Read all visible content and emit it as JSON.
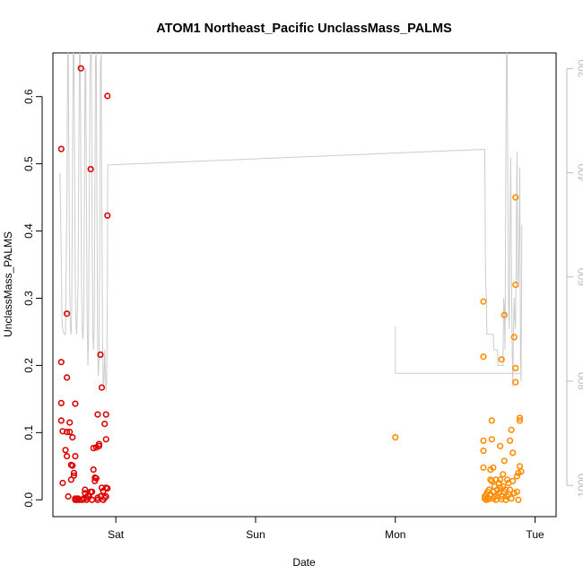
{
  "chart_data": {
    "type": "scatter",
    "title": "ATOM1 Northeast_Pacific UnclassMass_PALMS",
    "xlabel": "Date",
    "ylabel": "UnclassMass_PALMS",
    "x_ticks": [
      "Sat",
      "Sun",
      "Mon",
      "Tue"
    ],
    "x_tick_positions": [
      0,
      1,
      2,
      3
    ],
    "xlim": [
      -0.45,
      3.15
    ],
    "ylim": [
      -0.025,
      0.665
    ],
    "y_ticks": [
      0.0,
      0.1,
      0.2,
      0.3,
      0.4,
      0.5,
      0.6
    ],
    "y_tick_labels": [
      "0.0",
      "0.1",
      "0.2",
      "0.3",
      "0.4",
      "0.5",
      "0.6"
    ],
    "secondary_axis": {
      "label": "",
      "inverted": true,
      "ylim": [
        1060,
        170
      ],
      "ticks": [
        200,
        400,
        600,
        800,
        1000
      ],
      "tick_labels": [
        "200",
        "400",
        "600",
        "800",
        "1000"
      ],
      "color": "#bbbbbb"
    },
    "grid": false,
    "series": [
      {
        "color": "#dd0000",
        "marker": "open-circle",
        "points": [
          [
            -0.39,
            0.522
          ],
          [
            -0.39,
            0.205
          ],
          [
            -0.39,
            0.144
          ],
          [
            -0.39,
            0.118
          ],
          [
            -0.38,
            0.025
          ],
          [
            -0.38,
            0.102
          ],
          [
            -0.36,
            0.074
          ],
          [
            -0.35,
            0.277
          ],
          [
            -0.35,
            0.182
          ],
          [
            -0.35,
            0.065
          ],
          [
            -0.35,
            0.101
          ],
          [
            -0.34,
            0.005
          ],
          [
            -0.33,
            0.115
          ],
          [
            -0.33,
            0.101
          ],
          [
            -0.32,
            0.052
          ],
          [
            -0.32,
            0.03
          ],
          [
            -0.31,
            0.093
          ],
          [
            -0.31,
            0.051
          ],
          [
            -0.3,
            0.04
          ],
          [
            -0.3,
            0.036
          ],
          [
            -0.29,
            0.065
          ],
          [
            -0.29,
            0.143
          ],
          [
            -0.29,
            0.002
          ],
          [
            -0.29,
            0.0
          ],
          [
            -0.28,
            0.0
          ],
          [
            -0.27,
            0.002
          ],
          [
            -0.26,
            0.0
          ],
          [
            -0.25,
            0.642
          ],
          [
            -0.24,
            0.0
          ],
          [
            -0.23,
            0.002
          ],
          [
            -0.22,
            0.015
          ],
          [
            -0.22,
            0.01
          ],
          [
            -0.21,
            0.003
          ],
          [
            -0.21,
            0.0
          ],
          [
            -0.2,
            0.006
          ],
          [
            -0.19,
            0.005
          ],
          [
            -0.18,
            0.492
          ],
          [
            -0.18,
            0.012
          ],
          [
            -0.17,
            0.0
          ],
          [
            -0.17,
            0.012
          ],
          [
            -0.16,
            0.077
          ],
          [
            -0.16,
            0.045
          ],
          [
            -0.15,
            0.028
          ],
          [
            -0.15,
            0.033
          ],
          [
            -0.14,
            0.078
          ],
          [
            -0.14,
            0.032
          ],
          [
            -0.13,
            0.0
          ],
          [
            -0.13,
            0.003
          ],
          [
            -0.13,
            0.127
          ],
          [
            -0.12,
            0.08
          ],
          [
            -0.12,
            0.083
          ],
          [
            -0.11,
            0.216
          ],
          [
            -0.11,
            0.005
          ],
          [
            -0.1,
            0.167
          ],
          [
            -0.1,
            0.018
          ],
          [
            -0.09,
            0.0
          ],
          [
            -0.09,
            0.013
          ],
          [
            -0.08,
            0.003
          ],
          [
            -0.08,
            0.113
          ],
          [
            -0.07,
            0.005
          ],
          [
            -0.07,
            0.018
          ],
          [
            -0.07,
            0.127
          ],
          [
            -0.07,
            0.09
          ],
          [
            -0.06,
            0.017
          ],
          [
            -0.06,
            0.423
          ],
          [
            -0.06,
            0.601
          ]
        ]
      },
      {
        "color": "#ff8c00",
        "marker": "open-circle",
        "points": [
          [
            2.0,
            0.093
          ],
          [
            2.63,
            0.295
          ],
          [
            2.63,
            0.213
          ],
          [
            2.63,
            0.088
          ],
          [
            2.63,
            0.073
          ],
          [
            2.63,
            0.048
          ],
          [
            2.64,
            0.005
          ],
          [
            2.64,
            0.002
          ],
          [
            2.65,
            0.0
          ],
          [
            2.65,
            0.008
          ],
          [
            2.66,
            0.012
          ],
          [
            2.66,
            0.003
          ],
          [
            2.67,
            0.015
          ],
          [
            2.67,
            0.001
          ],
          [
            2.68,
            0.03
          ],
          [
            2.68,
            0.045
          ],
          [
            2.68,
            0.008
          ],
          [
            2.69,
            0.118
          ],
          [
            2.69,
            0.09
          ],
          [
            2.69,
            0.028
          ],
          [
            2.7,
            0.002
          ],
          [
            2.7,
            0.048
          ],
          [
            2.7,
            0.012
          ],
          [
            2.71,
            0.005
          ],
          [
            2.71,
            0.02
          ],
          [
            2.72,
            0.03
          ],
          [
            2.72,
            0.0
          ],
          [
            2.73,
            0.015
          ],
          [
            2.73,
            0.006
          ],
          [
            2.74,
            0.025
          ],
          [
            2.74,
            0.01
          ],
          [
            2.75,
            0.08
          ],
          [
            2.75,
            0.03
          ],
          [
            2.75,
            0.018
          ],
          [
            2.76,
            0.209
          ],
          [
            2.76,
            0.005
          ],
          [
            2.76,
            0.001
          ],
          [
            2.77,
            0.02
          ],
          [
            2.77,
            0.038
          ],
          [
            2.78,
            0.275
          ],
          [
            2.78,
            0.058
          ],
          [
            2.78,
            0.012
          ],
          [
            2.79,
            0.0
          ],
          [
            2.79,
            0.015
          ],
          [
            2.8,
            0.005
          ],
          [
            2.8,
            0.03
          ],
          [
            2.81,
            0.025
          ],
          [
            2.81,
            0.008
          ],
          [
            2.82,
            0.088
          ],
          [
            2.82,
            0.015
          ],
          [
            2.83,
            0.104
          ],
          [
            2.83,
            0.002
          ],
          [
            2.84,
            0.028
          ],
          [
            2.84,
            0.07
          ],
          [
            2.85,
            0.242
          ],
          [
            2.85,
            0.01
          ],
          [
            2.86,
            0.196
          ],
          [
            2.86,
            0.175
          ],
          [
            2.86,
            0.45
          ],
          [
            2.86,
            0.32
          ],
          [
            2.87,
            0.035
          ],
          [
            2.87,
            0.012
          ],
          [
            2.88,
            0.04
          ],
          [
            2.88,
            0.0
          ],
          [
            2.89,
            0.118
          ],
          [
            2.89,
            0.122
          ],
          [
            2.89,
            0.05
          ],
          [
            2.9,
            0.042
          ]
        ]
      },
      {
        "axis": "secondary",
        "color": "#cccccc",
        "style": "line",
        "points": [
          [
            -0.4,
            400
          ],
          [
            -0.39,
            560
          ],
          [
            -0.385,
            680
          ],
          [
            -0.38,
            700
          ],
          [
            -0.37,
            710
          ],
          [
            -0.36,
            710
          ],
          [
            -0.35,
            450
          ],
          [
            -0.345,
            170
          ],
          [
            -0.34,
            170
          ],
          [
            -0.335,
            400
          ],
          [
            -0.33,
            620
          ],
          [
            -0.325,
            700
          ],
          [
            -0.32,
            710
          ],
          [
            -0.315,
            660
          ],
          [
            -0.31,
            400
          ],
          [
            -0.305,
            170
          ],
          [
            -0.3,
            170
          ],
          [
            -0.295,
            400
          ],
          [
            -0.29,
            610
          ],
          [
            -0.285,
            690
          ],
          [
            -0.28,
            710
          ],
          [
            -0.27,
            620
          ],
          [
            -0.265,
            380
          ],
          [
            -0.26,
            170
          ],
          [
            -0.255,
            170
          ],
          [
            -0.25,
            400
          ],
          [
            -0.245,
            620
          ],
          [
            -0.24,
            700
          ],
          [
            -0.235,
            720
          ],
          [
            -0.23,
            680
          ],
          [
            -0.225,
            450
          ],
          [
            -0.22,
            200
          ],
          [
            -0.215,
            200
          ],
          [
            -0.21,
            460
          ],
          [
            -0.205,
            680
          ],
          [
            -0.2,
            770
          ],
          [
            -0.195,
            720
          ],
          [
            -0.19,
            460
          ],
          [
            -0.185,
            210
          ],
          [
            -0.18,
            170
          ],
          [
            -0.175,
            170
          ],
          [
            -0.17,
            460
          ],
          [
            -0.165,
            700
          ],
          [
            -0.16,
            740
          ],
          [
            -0.155,
            700
          ],
          [
            -0.15,
            450
          ],
          [
            -0.145,
            180
          ],
          [
            -0.14,
            170
          ],
          [
            -0.135,
            470
          ],
          [
            -0.13,
            740
          ],
          [
            -0.125,
            790
          ],
          [
            -0.12,
            760
          ],
          [
            -0.115,
            500
          ],
          [
            -0.11,
            190
          ],
          [
            -0.105,
            170
          ],
          [
            -0.1,
            450
          ],
          [
            -0.095,
            720
          ],
          [
            -0.09,
            810
          ],
          [
            -0.085,
            800
          ],
          [
            -0.08,
            740
          ],
          [
            -0.075,
            780
          ],
          [
            -0.07,
            820
          ],
          [
            -0.065,
            800
          ],
          [
            -0.06,
            600
          ],
          [
            -0.058,
            385
          ],
          [
            2.64,
            355
          ],
          [
            2.645,
            600
          ],
          [
            2.65,
            640
          ],
          [
            2.655,
            710
          ],
          [
            2.66,
            710
          ],
          [
            2.7,
            710
          ],
          [
            2.705,
            740
          ],
          [
            2.73,
            740
          ],
          [
            2.735,
            770
          ],
          [
            2.77,
            770
          ],
          [
            2.775,
            640
          ],
          [
            2.78,
            660
          ],
          [
            2.785,
            740
          ],
          [
            2.79,
            400
          ],
          [
            2.795,
            170
          ],
          [
            2.8,
            170
          ],
          [
            2.805,
            420
          ],
          [
            2.81,
            650
          ],
          [
            2.815,
            700
          ],
          [
            2.82,
            510
          ],
          [
            2.825,
            370
          ],
          [
            2.83,
            540
          ],
          [
            2.835,
            720
          ],
          [
            2.84,
            810
          ],
          [
            2.845,
            700
          ],
          [
            2.85,
            640
          ],
          [
            2.855,
            680
          ],
          [
            2.86,
            700
          ],
          [
            2.865,
            540
          ],
          [
            2.87,
            360
          ],
          [
            2.875,
            600
          ],
          [
            2.88,
            620
          ],
          [
            2.885,
            540
          ],
          [
            2.89,
            390
          ],
          [
            2.895,
            760
          ],
          [
            2.9,
            800
          ],
          [
            2.905,
            500
          ]
        ]
      },
      {
        "axis": "secondary",
        "color": "#cccccc",
        "style": "line",
        "points": [
          [
            2.0,
            695
          ],
          [
            2.0,
            785
          ],
          [
            2.62,
            785
          ],
          [
            2.75,
            785
          ],
          [
            2.85,
            785
          ],
          [
            2.87,
            785
          ],
          [
            2.9,
            785
          ]
        ]
      }
    ]
  }
}
